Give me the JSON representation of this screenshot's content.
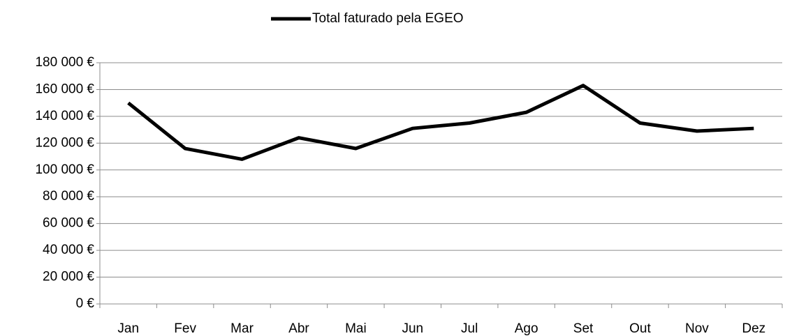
{
  "chart_data": {
    "type": "line",
    "categories": [
      "Jan",
      "Fev",
      "Mar",
      "Abr",
      "Mai",
      "Jun",
      "Jul",
      "Ago",
      "Set",
      "Out",
      "Nov",
      "Dez"
    ],
    "series": [
      {
        "name": "Total faturado pela EGEO",
        "color": "#000000",
        "values": [
          150000,
          116000,
          108000,
          124000,
          116000,
          131000,
          135000,
          143000,
          163000,
          135000,
          129000,
          131000
        ]
      }
    ],
    "ylim": [
      0,
      180000
    ],
    "yticks": [
      {
        "value": 0,
        "label": "0 €"
      },
      {
        "value": 20000,
        "label": "20 000 €"
      },
      {
        "value": 40000,
        "label": "40 000 €"
      },
      {
        "value": 60000,
        "label": "60 000 €"
      },
      {
        "value": 80000,
        "label": "80 000 €"
      },
      {
        "value": 100000,
        "label": "100 000 €"
      },
      {
        "value": 120000,
        "label": "120 000 €"
      },
      {
        "value": 140000,
        "label": "140 000 €"
      },
      {
        "value": 160000,
        "label": "160 000 €"
      },
      {
        "value": 180000,
        "label": "180 000 €"
      }
    ],
    "grid": true,
    "legend": "top"
  }
}
